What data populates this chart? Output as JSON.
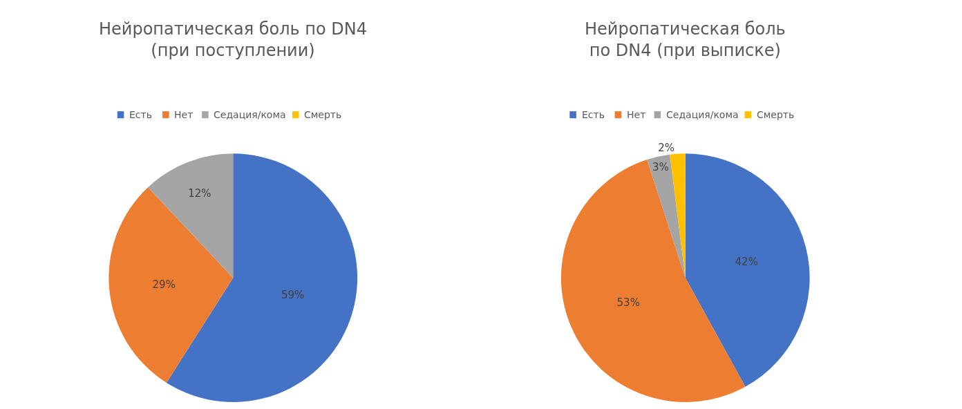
{
  "chart_data": [
    {
      "type": "pie",
      "title": "Нейропатическая боль по DN4\n(при поступлении)",
      "categories": [
        "Есть",
        "Нет",
        "Седация/кома",
        "Смерть"
      ],
      "values": [
        59,
        29,
        12,
        0
      ],
      "colors": [
        "#4472c4",
        "#ed7d31",
        "#a5a5a5",
        "#ffc000"
      ],
      "value_labels": [
        "59%",
        "29%",
        "12%",
        null
      ],
      "legend": "top"
    },
    {
      "type": "pie",
      "title": "Нейропатическая боль\nпо DN4 (при выписке)",
      "categories": [
        "Есть",
        "Нет",
        "Седация/кома",
        "Смерть"
      ],
      "values": [
        42,
        53,
        3,
        2
      ],
      "colors": [
        "#4472c4",
        "#ed7d31",
        "#a5a5a5",
        "#ffc000"
      ],
      "value_labels": [
        "42%",
        "53%",
        "3%",
        "2%"
      ],
      "legend": "top"
    }
  ]
}
